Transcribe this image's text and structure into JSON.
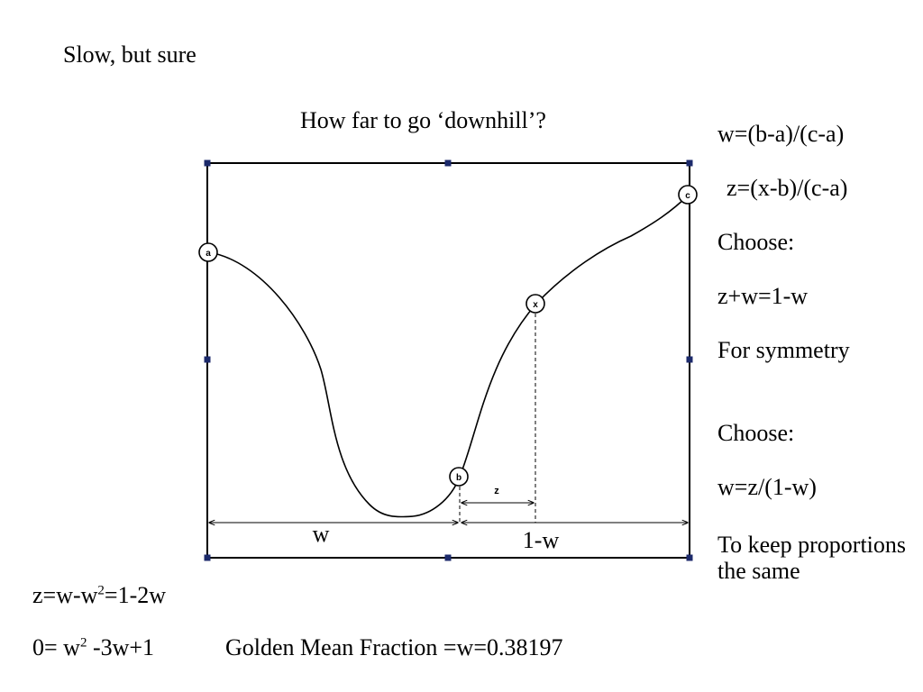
{
  "slide": {
    "title": "Slow, but sure",
    "question": "How far to go ‘downhill’?"
  },
  "sidebar": {
    "line1": "w=(b-a)/(c-a)",
    "line2": "z=(x-b)/(c-a)",
    "line3": "Choose:",
    "line4": "z+w=1-w",
    "line5": "For symmetry",
    "line6": "Choose:",
    "line7": "w=z/(1-w)",
    "line8": "To keep proportions the same"
  },
  "equations": {
    "eq1_a": "z=w-w",
    "eq1_sup": "2",
    "eq1_b": "=1-2w",
    "eq2_a": "0= w",
    "eq2_sup": "2",
    "eq2_b": " -3w+1",
    "golden": "Golden Mean Fraction =w=0.38197"
  },
  "diagram": {
    "point_a": "a",
    "point_b": "b",
    "point_c": "c",
    "point_x": "x",
    "z_label": "z",
    "w_label": "w",
    "one_minus_w_label": "1-w"
  },
  "colors": {
    "handle": "#1c2a6b",
    "line": "#000000"
  }
}
